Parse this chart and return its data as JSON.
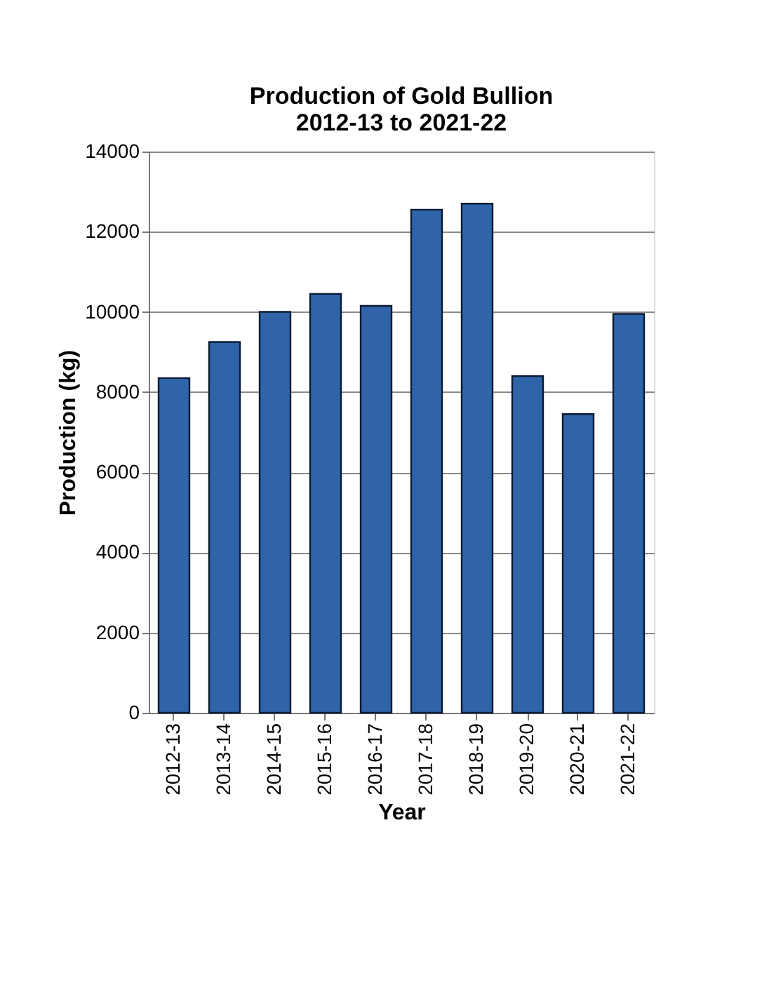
{
  "chart_data": {
    "type": "bar",
    "title": "Production of Gold Bullion\n2012-13  to 2021-22",
    "xlabel": "Year",
    "ylabel": "Production (kg)",
    "categories": [
      "2012-13",
      "2013-14",
      "2014-15",
      "2015-16",
      "2016-17",
      "2017-18",
      "2018-19",
      "2019-20",
      "2020-21",
      "2021-22"
    ],
    "values": [
      8350,
      9250,
      10000,
      10450,
      10150,
      12550,
      12700,
      8400,
      7450,
      9950
    ],
    "color": "#2f64a8",
    "ylim": [
      0,
      14000
    ],
    "yticks": [
      0,
      2000,
      4000,
      6000,
      8000,
      10000,
      12000,
      14000
    ],
    "grid": "y"
  }
}
